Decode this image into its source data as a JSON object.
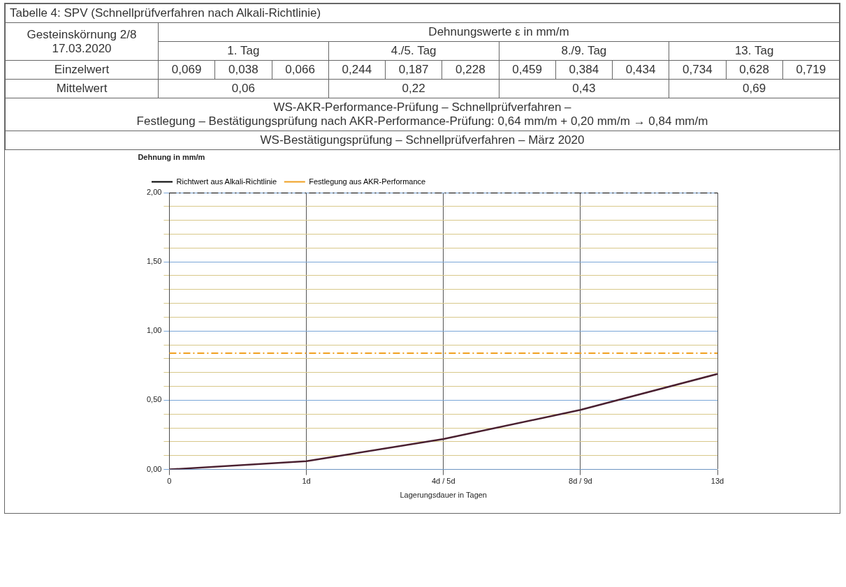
{
  "chart_data": [
    {
      "type": "other",
      "title": "Tabelle 4:    SPV (Schnellprüfverfahren nach Alkali-Richtlinie)",
      "annotations": [
        "Gesteinskörnung 2/8 17.03.2020",
        "Dehnungswerte ε in mm/m",
        "1. Tag",
        "4./5. Tag",
        "8./9. Tag",
        "13. Tag",
        "Einzelwert",
        "0,069",
        "0,038",
        "0,066",
        "0,244",
        "0,187",
        "0,228",
        "0,459",
        "0,384",
        "0,434",
        "0,734",
        "0,628",
        "0,719",
        "Mittelwert",
        "0,06",
        "0,22",
        "0,43",
        "0,69",
        "WS-AKR-Performance-Prüfung – Schnellprüfverfahren –",
        "Festlegung – Bestätigungsprüfung nach AKR-Performance-Prüfung: 0,64 mm/m + 0,20 mm/m → 0,84 mm/m",
        "WS-Bestätigungsprüfung – Schnellprüfverfahren – März 2020"
      ]
    },
    {
      "type": "line",
      "ylabel": "Dehnung in mm/m",
      "xlabel": "Lagerungsdauer in Tagen",
      "categories": [
        "0",
        "1d",
        "4d / 5d",
        "8d / 9d",
        "13d"
      ],
      "series": [
        {
          "color": "#4a2030",
          "values": [
            0,
            0.06,
            0.22,
            0.43,
            0.69
          ]
        }
      ],
      "ylim": [
        0,
        2
      ],
      "yticks": [
        {
          "value": 0,
          "label": "0,00"
        },
        {
          "value": 0.1,
          "label": null
        },
        {
          "value": 0.2,
          "label": null
        },
        {
          "value": 0.3,
          "label": null
        },
        {
          "value": 0.4,
          "label": null
        },
        {
          "value": 0.5,
          "label": "0,50"
        },
        {
          "value": 0.6,
          "label": null
        },
        {
          "value": 0.7,
          "label": null
        },
        {
          "value": 0.8,
          "label": null
        },
        {
          "value": 0.9,
          "label": null
        },
        {
          "value": 1,
          "label": "1,00"
        },
        {
          "value": 1.1,
          "label": null
        },
        {
          "value": 1.2,
          "label": null
        },
        {
          "value": 1.3,
          "label": null
        },
        {
          "value": 1.4,
          "label": null
        },
        {
          "value": 1.5,
          "label": "1,50"
        },
        {
          "value": 1.6,
          "label": null
        },
        {
          "value": 1.7,
          "label": null
        },
        {
          "value": 1.8,
          "label": null
        },
        {
          "value": 1.9,
          "label": null
        },
        {
          "value": 2,
          "label": "2,00"
        }
      ],
      "ref_lines": [
        {
          "axis": "y",
          "value": 2,
          "label": "Richtwert aus Alkali-Richtlinie",
          "color": "#000000",
          "line_style": "dashdot"
        },
        {
          "axis": "y",
          "value": 0.84,
          "label": "Festlegung aus AKR-Performance",
          "color": "#f0a020",
          "line_style": "dashdot"
        }
      ],
      "grid": true,
      "legend": "top left",
      "marker": "none",
      "line_style": "solid"
    }
  ]
}
